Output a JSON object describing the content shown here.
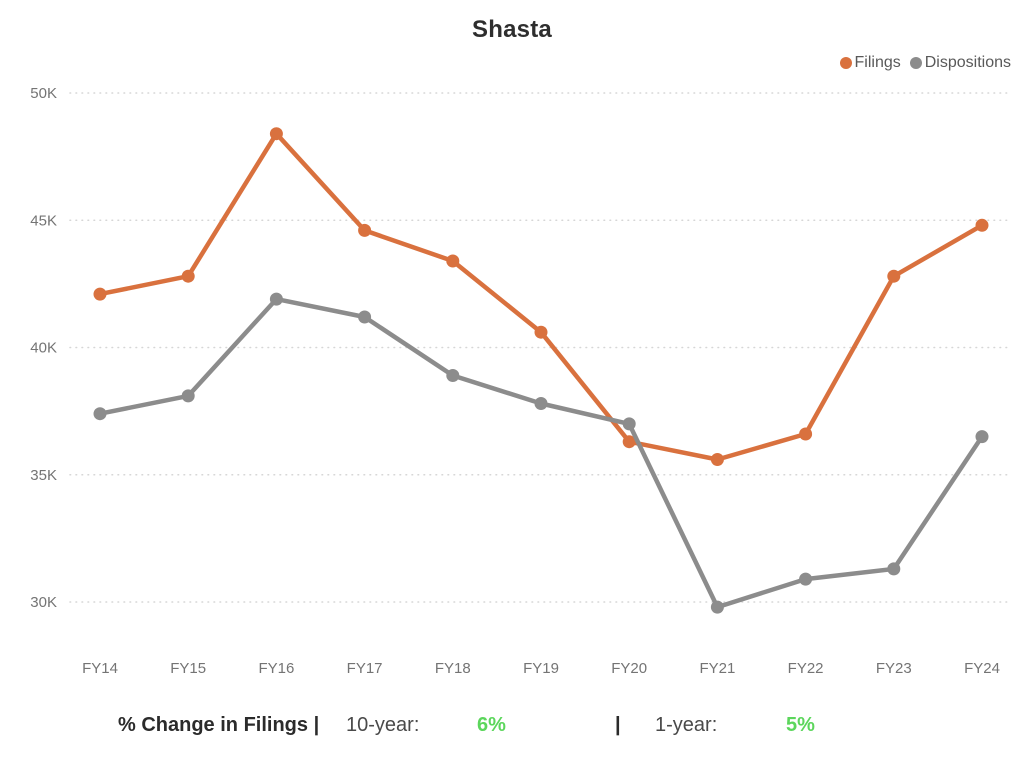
{
  "title": "Shasta",
  "colors": {
    "filings": "#D9713E",
    "dispositions": "#8C8C8C",
    "gridline": "#d6d6d6",
    "axis_label": "#747474",
    "title_text": "#2e2e2e",
    "legend_text": "#595959",
    "footer_value_green": "#5CD65C",
    "footer_label_dark": "#2b2b2b"
  },
  "legend": {
    "items": [
      {
        "label": "Filings",
        "color": "#D9713E"
      },
      {
        "label": "Dispositions",
        "color": "#8C8C8C"
      }
    ]
  },
  "chart_data": {
    "type": "line",
    "title": "Shasta",
    "categories": [
      "FY14",
      "FY15",
      "FY16",
      "FY17",
      "FY18",
      "FY19",
      "FY20",
      "FY21",
      "FY22",
      "FY23",
      "FY24"
    ],
    "series": [
      {
        "name": "Filings",
        "color": "#D9713E",
        "values": [
          42100,
          42800,
          48400,
          44600,
          43400,
          40600,
          36300,
          35600,
          36600,
          42800,
          44800
        ]
      },
      {
        "name": "Dispositions",
        "color": "#8C8C8C",
        "values": [
          37400,
          38100,
          41900,
          41200,
          38900,
          37800,
          37000,
          29800,
          30900,
          31300,
          36500
        ]
      }
    ],
    "y_ticks": [
      {
        "label": "50K",
        "value": 50000
      },
      {
        "label": "45K",
        "value": 45000
      },
      {
        "label": "40K",
        "value": 40000
      },
      {
        "label": "35K",
        "value": 35000
      },
      {
        "label": "30K",
        "value": 30000
      }
    ],
    "ylim": [
      29500,
      50000
    ],
    "grid": "horizontal-dotted",
    "legend_position": "top-right",
    "xlabel": "",
    "ylabel": ""
  },
  "footer": {
    "label": "% Change in Filings |",
    "ten_year_key": "10-year:",
    "ten_year_value": "6%",
    "separator": "|",
    "one_year_key": "1-year:",
    "one_year_value": "5%"
  }
}
